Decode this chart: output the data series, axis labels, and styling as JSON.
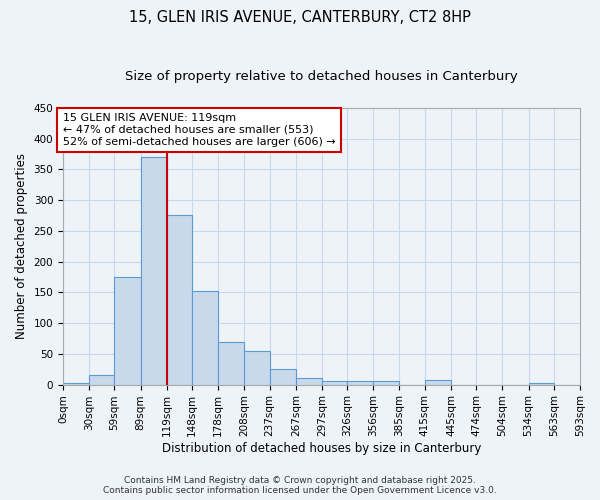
{
  "title1": "15, GLEN IRIS AVENUE, CANTERBURY, CT2 8HP",
  "title2": "Size of property relative to detached houses in Canterbury",
  "xlabel": "Distribution of detached houses by size in Canterbury",
  "ylabel": "Number of detached properties",
  "bar_values": [
    2,
    15,
    175,
    370,
    275,
    152,
    70,
    55,
    25,
    10,
    6,
    6,
    6,
    0,
    7,
    0,
    0,
    0,
    2,
    0
  ],
  "bin_edges": [
    0,
    30,
    59,
    89,
    119,
    148,
    178,
    208,
    237,
    267,
    297,
    326,
    356,
    385,
    415,
    445,
    474,
    504,
    534,
    563,
    593
  ],
  "bin_labels": [
    "0sqm",
    "30sqm",
    "59sqm",
    "89sqm",
    "119sqm",
    "148sqm",
    "178sqm",
    "208sqm",
    "237sqm",
    "267sqm",
    "297sqm",
    "326sqm",
    "356sqm",
    "385sqm",
    "415sqm",
    "445sqm",
    "474sqm",
    "504sqm",
    "534sqm",
    "563sqm",
    "593sqm"
  ],
  "bar_color": "#c8d9eb",
  "bar_edge_color": "#5b9bd5",
  "vline_x": 119,
  "vline_color": "#cc0000",
  "annotation_line1": "15 GLEN IRIS AVENUE: 119sqm",
  "annotation_line2": "← 47% of detached houses are smaller (553)",
  "annotation_line3": "52% of semi-detached houses are larger (606) →",
  "annotation_box_color": "#cc0000",
  "ylim": [
    0,
    450
  ],
  "yticks": [
    0,
    50,
    100,
    150,
    200,
    250,
    300,
    350,
    400,
    450
  ],
  "grid_color": "#c6d9f0",
  "background_color": "#eef3f8",
  "footer1": "Contains HM Land Registry data © Crown copyright and database right 2025.",
  "footer2": "Contains public sector information licensed under the Open Government Licence v3.0.",
  "title_fontsize": 10.5,
  "subtitle_fontsize": 9.5,
  "tick_fontsize": 7.5,
  "ylabel_fontsize": 8.5,
  "xlabel_fontsize": 8.5,
  "annotation_fontsize": 8,
  "footer_fontsize": 6.5
}
